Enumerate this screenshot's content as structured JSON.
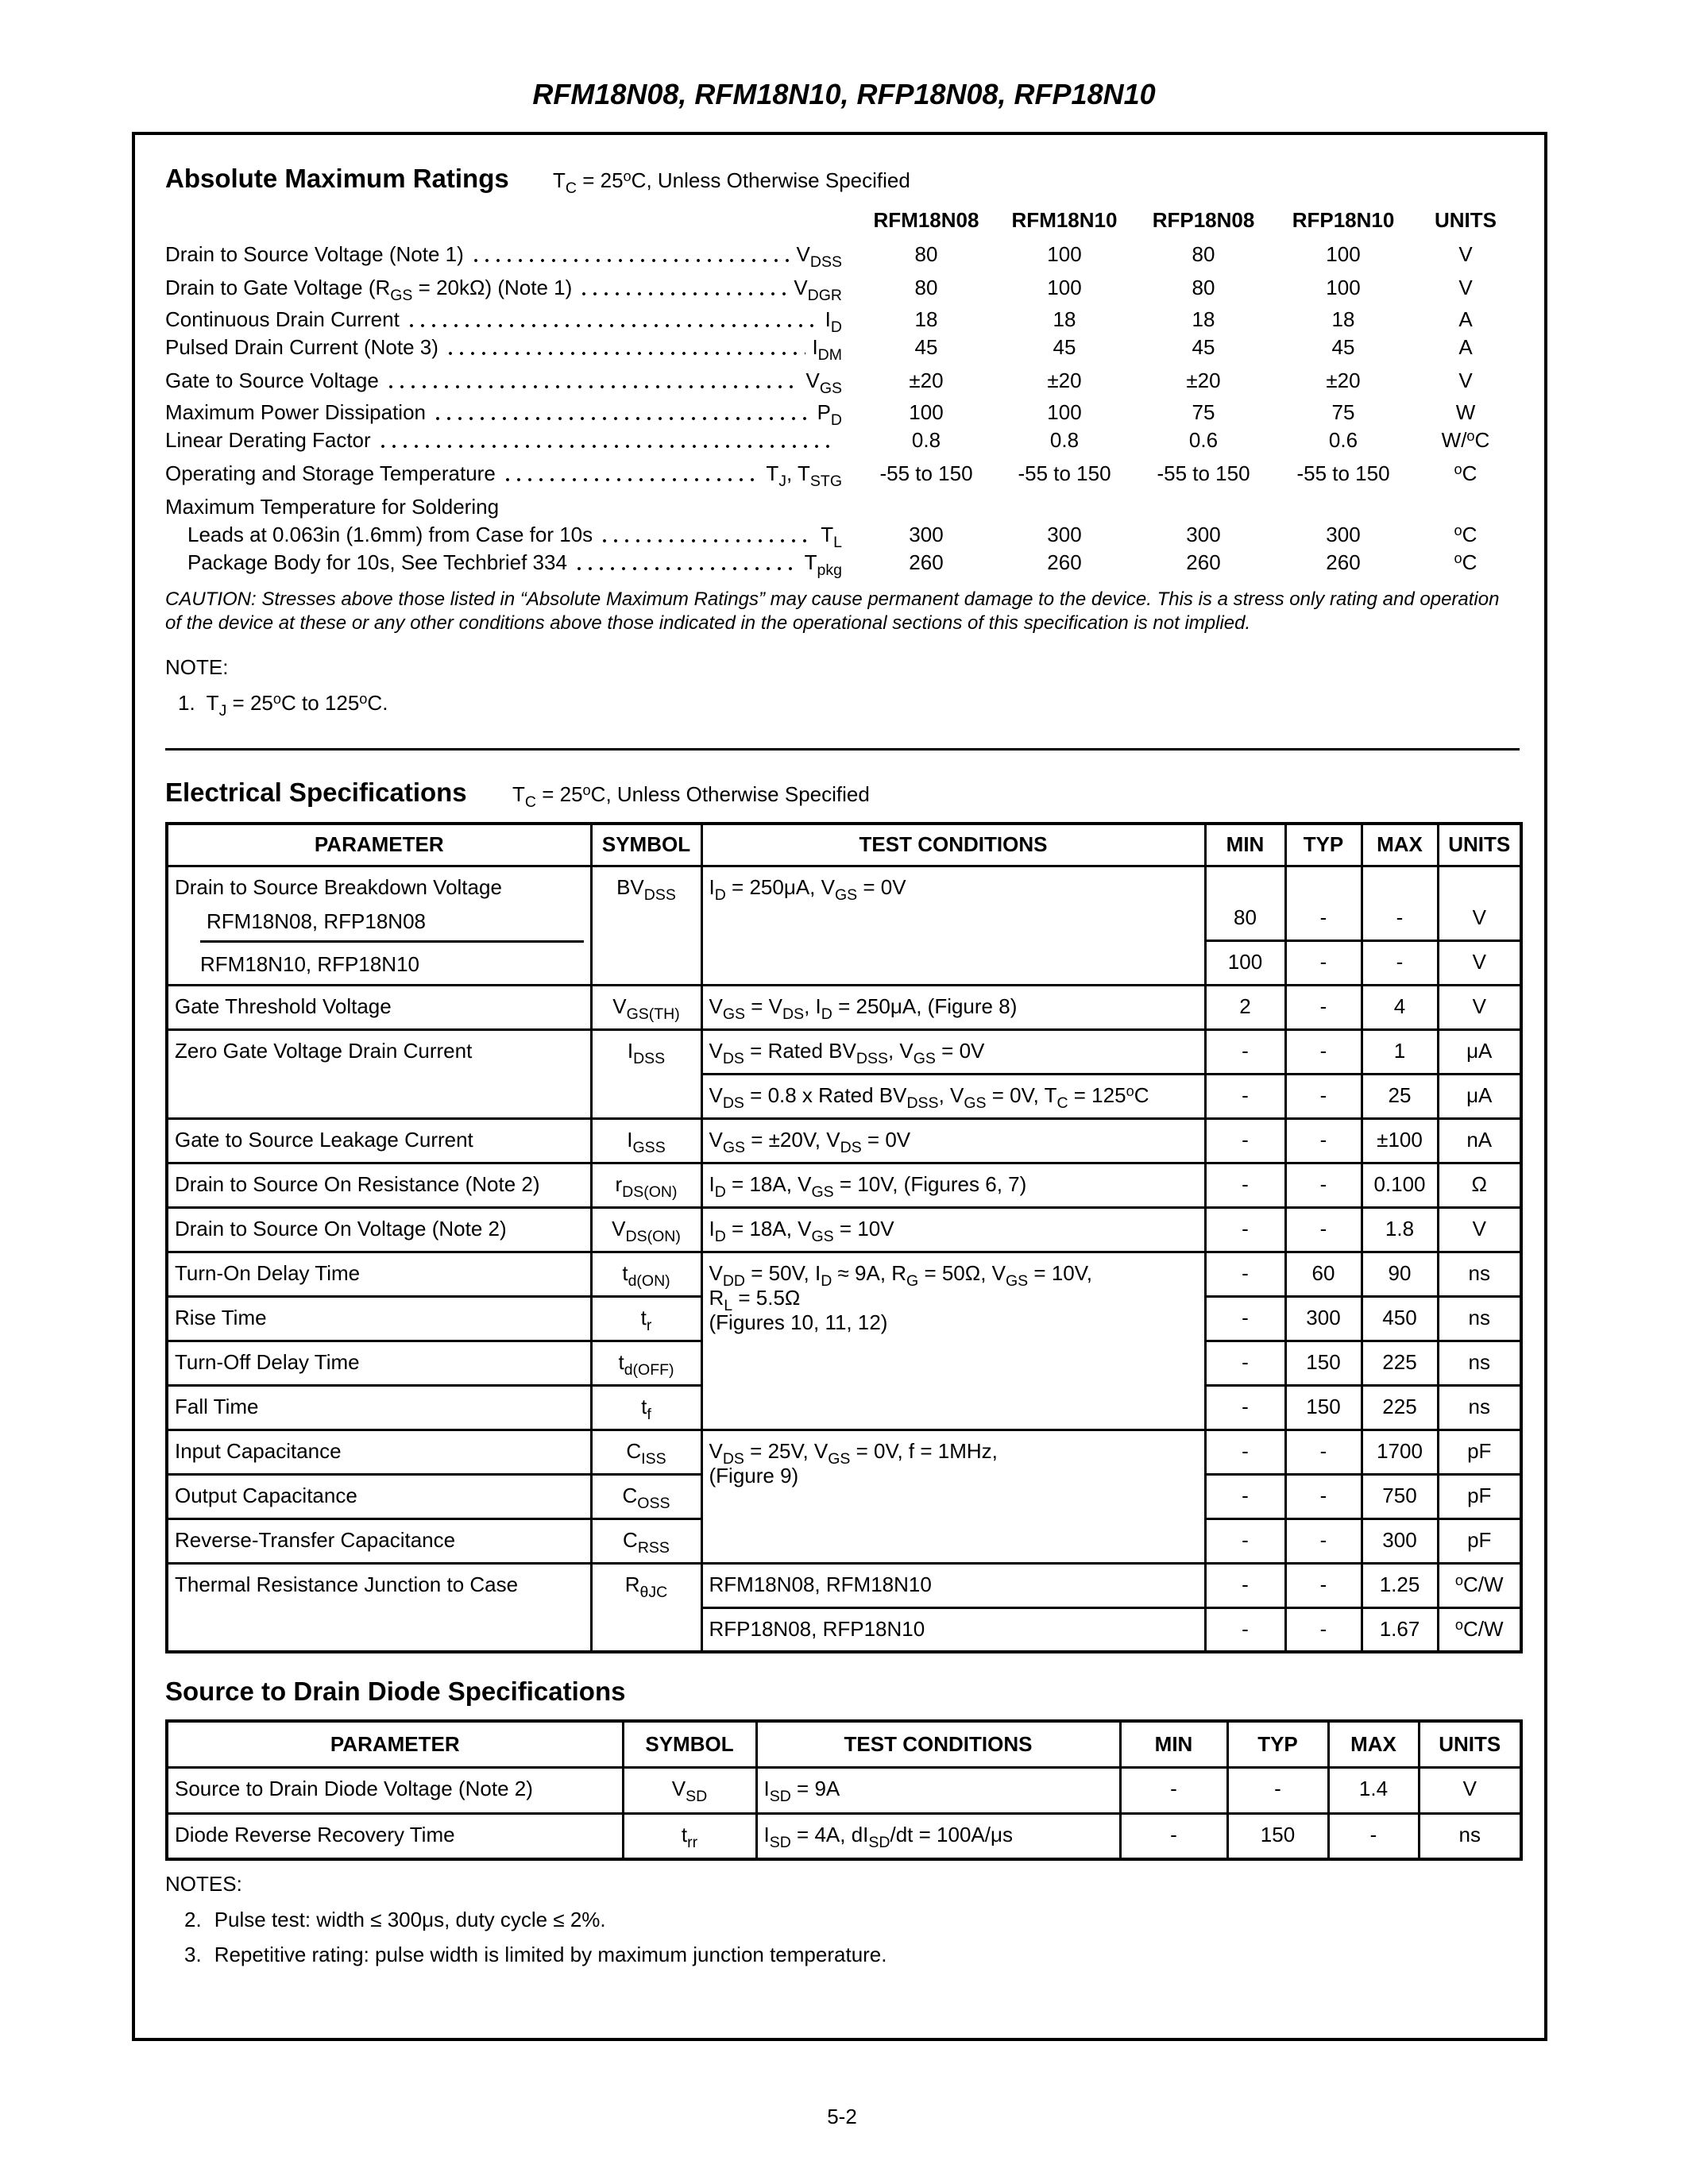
{
  "header": {
    "title": "RFM18N08, RFM18N10, RFP18N08, RFP18N10"
  },
  "absolute_maximum_ratings": {
    "title": "Absolute Maximum Ratings",
    "condition": [
      "T",
      {
        "sub": "C"
      },
      " = 25",
      {
        "sup": "o"
      },
      "C, Unless Otherwise Specified"
    ],
    "columns": [
      "RFM18N08",
      "RFM18N10",
      "RFP18N08",
      "RFP18N10",
      "UNITS"
    ],
    "rows": [
      {
        "label": "Drain to Source Voltage (Note 1)",
        "symbol": [
          "V",
          {
            "sub": "DSS"
          }
        ],
        "values": [
          "80",
          "100",
          "80",
          "100"
        ],
        "unit": "V"
      },
      {
        "label": [
          "Drain to Gate Voltage (R",
          {
            "sub": "GS"
          },
          " = 20kΩ) (Note 1)"
        ],
        "symbol": [
          "V",
          {
            "sub": "DGR"
          }
        ],
        "values": [
          "80",
          "100",
          "80",
          "100"
        ],
        "unit": "V"
      },
      {
        "label": "Continuous Drain Current",
        "symbol": [
          "I",
          {
            "sub": "D"
          }
        ],
        "values": [
          "18",
          "18",
          "18",
          "18"
        ],
        "unit": "A"
      },
      {
        "label": "Pulsed Drain Current (Note 3)",
        "symbol": [
          "I",
          {
            "sub": "DM"
          }
        ],
        "values": [
          "45",
          "45",
          "45",
          "45"
        ],
        "unit": "A"
      },
      {
        "label": "Gate to Source Voltage",
        "symbol": [
          "V",
          {
            "sub": "GS"
          }
        ],
        "values": [
          "±20",
          "±20",
          "±20",
          "±20"
        ],
        "unit": "V"
      },
      {
        "label": "Maximum Power Dissipation",
        "symbol": [
          "P",
          {
            "sub": "D"
          }
        ],
        "values": [
          "100",
          "100",
          "75",
          "75"
        ],
        "unit": "W"
      },
      {
        "label": "Linear Derating Factor",
        "values": [
          "0.8",
          "0.8",
          "0.6",
          "0.6"
        ],
        "unit": [
          "W/",
          {
            "sup": "o"
          },
          "C"
        ]
      },
      {
        "label": "Operating and Storage Temperature",
        "symbol": [
          "T",
          {
            "sub": "J"
          },
          ", T",
          {
            "sub": "STG"
          }
        ],
        "values": [
          "-55 to 150",
          "-55 to 150",
          "-55 to 150",
          "-55 to 150"
        ],
        "unit": [
          {
            "sup": "o"
          },
          "C"
        ]
      }
    ],
    "soldering": {
      "label": "Maximum Temperature for Soldering",
      "rows": [
        {
          "label": "Leads at 0.063in (1.6mm) from Case for 10s",
          "symbol": [
            "T",
            {
              "sub": "L"
            }
          ],
          "values": [
            "300",
            "300",
            "300",
            "300"
          ],
          "unit": [
            {
              "sup": "o"
            },
            "C"
          ]
        },
        {
          "label": "Package Body for 10s, See Techbrief 334",
          "symbol": [
            "T",
            {
              "sub": "pkg"
            }
          ],
          "values": [
            "260",
            "260",
            "260",
            "260"
          ],
          "unit": [
            {
              "sup": "o"
            },
            "C"
          ]
        }
      ]
    },
    "caution": "CAUTION: Stresses above those listed in “Absolute Maximum Ratings” may cause permanent damage to the device. This is a stress only rating and operation of the device at these or any other conditions above those indicated in the operational sections of this specification is not implied.",
    "note_heading": "NOTE:",
    "notes": [
      {
        "number": "1.",
        "text": [
          "T",
          {
            "sub": "J"
          },
          " = 25",
          {
            "sup": "o"
          },
          "C to 125",
          {
            "sup": "o"
          },
          "C."
        ]
      }
    ]
  },
  "electrical": {
    "title": "Electrical Specifications",
    "condition": [
      "T",
      {
        "sub": "C"
      },
      " = 25",
      {
        "sup": "o"
      },
      "C, Unless Otherwise Specified"
    ],
    "headers": [
      "PARAMETER",
      "SYMBOL",
      "TEST CONDITIONS",
      "MIN",
      "TYP",
      "MAX",
      "UNITS"
    ],
    "rows": [
      {
        "parameter": "Drain to Source Breakdown Voltage",
        "symbol": [
          "BV",
          {
            "sub": "DSS"
          }
        ],
        "conditions": [
          "I",
          {
            "sub": "D"
          },
          " = 250μA, V",
          {
            "sub": "GS"
          },
          " = 0V"
        ],
        "variants": [
          {
            "name": "RFM18N08, RFP18N08",
            "min": "80",
            "typ": "-",
            "max": "-",
            "units": "V"
          },
          {
            "name": "RFM18N10, RFP18N10",
            "min": "100",
            "typ": "-",
            "max": "-",
            "units": "V"
          }
        ]
      },
      {
        "parameter": "Gate Threshold Voltage",
        "symbol": [
          "V",
          {
            "sub": "GS(TH)"
          }
        ],
        "conditions": [
          "V",
          {
            "sub": "GS"
          },
          " = V",
          {
            "sub": "DS"
          },
          ", I",
          {
            "sub": "D"
          },
          " = 250μA, (Figure 8)"
        ],
        "min": "2",
        "typ": "-",
        "max": "4",
        "units": "V"
      },
      {
        "parameter": "Zero Gate Voltage Drain Current",
        "symbol": [
          "I",
          {
            "sub": "DSS"
          }
        ],
        "tests": [
          {
            "conditions": [
              "V",
              {
                "sub": "DS"
              },
              " = Rated BV",
              {
                "sub": "DSS"
              },
              ", V",
              {
                "sub": "GS"
              },
              " = 0V"
            ],
            "min": "-",
            "typ": "-",
            "max": "1",
            "units": "μA"
          },
          {
            "conditions": [
              "V",
              {
                "sub": "DS"
              },
              " = 0.8 x Rated BV",
              {
                "sub": "DSS"
              },
              ", V",
              {
                "sub": "GS"
              },
              " = 0V, T",
              {
                "sub": "C"
              },
              " = 125",
              {
                "sup": "o"
              },
              "C"
            ],
            "min": "-",
            "typ": "-",
            "max": "25",
            "units": "μA"
          }
        ]
      },
      {
        "parameter": "Gate to Source Leakage Current",
        "symbol": [
          "I",
          {
            "sub": "GSS"
          }
        ],
        "conditions": [
          "V",
          {
            "sub": "GS"
          },
          " = ±20V, V",
          {
            "sub": "DS"
          },
          " = 0V"
        ],
        "min": "-",
        "typ": "-",
        "max": "±100",
        "units": "nA"
      },
      {
        "parameter": "Drain to Source On Resistance (Note 2)",
        "symbol": [
          "r",
          {
            "sub": "DS(ON)"
          }
        ],
        "conditions": [
          "I",
          {
            "sub": "D"
          },
          " = 18A, V",
          {
            "sub": "GS"
          },
          " = 10V, (Figures 6, 7)"
        ],
        "min": "-",
        "typ": "-",
        "max": "0.100",
        "units": "Ω"
      },
      {
        "parameter": "Drain to Source On Voltage (Note 2)",
        "symbol": [
          "V",
          {
            "sub": "DS(ON)"
          }
        ],
        "conditions": [
          "I",
          {
            "sub": "D"
          },
          " = 18A, V",
          {
            "sub": "GS"
          },
          " = 10V"
        ],
        "min": "-",
        "typ": "-",
        "max": "1.8",
        "units": "V"
      },
      {
        "conditions": [
          [
            "V",
            {
              "sub": "DD"
            },
            " = 50V, I",
            {
              "sub": "D"
            },
            " ≈ 9A, R",
            {
              "sub": "G"
            },
            " = 50Ω, V",
            {
              "sub": "GS"
            },
            " = 10V,"
          ],
          [
            "R",
            {
              "sub": "L"
            },
            " = 5.5Ω"
          ],
          "(Figures 10, 11, 12)"
        ],
        "items": [
          {
            "parameter": "Turn-On Delay Time",
            "symbol": [
              "t",
              {
                "sub": "d(ON)"
              }
            ],
            "min": "-",
            "typ": "60",
            "max": "90",
            "units": "ns"
          },
          {
            "parameter": "Rise Time",
            "symbol": [
              "t",
              {
                "sub": "r"
              }
            ],
            "min": "-",
            "typ": "300",
            "max": "450",
            "units": "ns"
          },
          {
            "parameter": "Turn-Off Delay Time",
            "symbol": [
              "t",
              {
                "sub": "d(OFF)"
              }
            ],
            "min": "-",
            "typ": "150",
            "max": "225",
            "units": "ns"
          },
          {
            "parameter": "Fall Time",
            "symbol": [
              "t",
              {
                "sub": "f"
              }
            ],
            "min": "-",
            "typ": "150",
            "max": "225",
            "units": "ns"
          }
        ]
      },
      {
        "conditions": [
          [
            "V",
            {
              "sub": "DS"
            },
            " = 25V, V",
            {
              "sub": "GS"
            },
            " = 0V, f = 1MHz,"
          ],
          "(Figure 9)"
        ],
        "items": [
          {
            "parameter": "Input Capacitance",
            "symbol": [
              "C",
              {
                "sub": "ISS"
              }
            ],
            "min": "-",
            "typ": "-",
            "max": "1700",
            "units": "pF"
          },
          {
            "parameter": "Output Capacitance",
            "symbol": [
              "C",
              {
                "sub": "OSS"
              }
            ],
            "min": "-",
            "typ": "-",
            "max": "750",
            "units": "pF"
          },
          {
            "parameter": "Reverse-Transfer Capacitance",
            "symbol": [
              "C",
              {
                "sub": "RSS"
              }
            ],
            "min": "-",
            "typ": "-",
            "max": "300",
            "units": "pF"
          }
        ]
      },
      {
        "parameter": "Thermal Resistance Junction to Case",
        "symbol": [
          "R",
          {
            "sub": "θJC"
          }
        ],
        "tests": [
          {
            "conditions": "RFM18N08, RFM18N10",
            "min": "-",
            "typ": "-",
            "max": "1.25",
            "units": [
              {
                "sup": "o"
              },
              "C/W"
            ]
          },
          {
            "conditions": "RFP18N08, RFP18N10",
            "min": "-",
            "typ": "-",
            "max": "1.67",
            "units": [
              {
                "sup": "o"
              },
              "C/W"
            ]
          }
        ]
      }
    ]
  },
  "diode": {
    "title": "Source to Drain Diode Specifications",
    "headers": [
      "PARAMETER",
      "SYMBOL",
      "TEST CONDITIONS",
      "MIN",
      "TYP",
      "MAX",
      "UNITS"
    ],
    "rows": [
      {
        "parameter": "Source to Drain Diode Voltage (Note 2)",
        "symbol": [
          "V",
          {
            "sub": "SD"
          }
        ],
        "conditions": [
          "I",
          {
            "sub": "SD"
          },
          " = 9A"
        ],
        "min": "-",
        "typ": "-",
        "max": "1.4",
        "units": "V"
      },
      {
        "parameter": "Diode Reverse Recovery Time",
        "symbol": [
          "t",
          {
            "sub": "rr"
          }
        ],
        "conditions": [
          "I",
          {
            "sub": "SD"
          },
          " = 4A, dI",
          {
            "sub": "SD"
          },
          "/dt = 100A/μs"
        ],
        "min": "-",
        "typ": "150",
        "max": "-",
        "units": "ns"
      }
    ],
    "notes_heading": "NOTES:",
    "notes": [
      {
        "number": "2.",
        "text": "Pulse test: width ≤ 300μs, duty cycle ≤ 2%."
      },
      {
        "number": "3.",
        "text": "Repetitive rating: pulse width is limited by maximum junction temperature."
      }
    ]
  },
  "footer": {
    "page": "5-2"
  }
}
